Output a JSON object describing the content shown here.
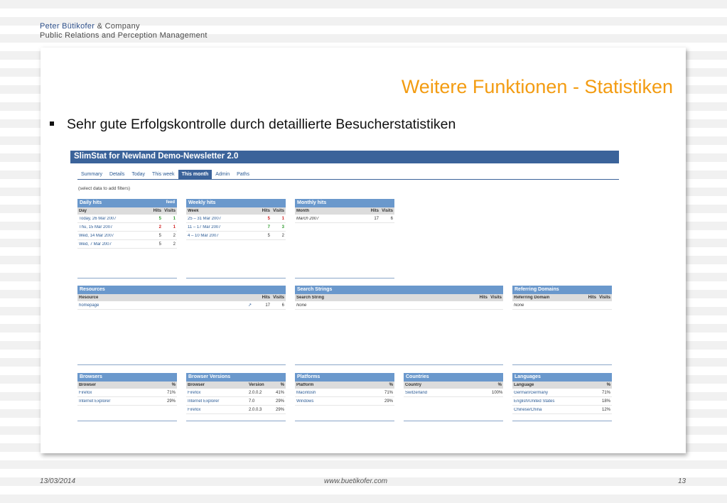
{
  "company": {
    "name": "Peter Bütikofer",
    "suffix": " & Company",
    "tagline": "Public Relations and Perception Management"
  },
  "slide": {
    "title": "Weitere Funktionen - Statistiken",
    "bullet": "Sehr gute Erfolgskontrolle durch detaillierte Besucherstatistiken"
  },
  "app": {
    "title": "SlimStat for Newland Demo-Newsletter 2.0",
    "tabs": [
      "Summary",
      "Details",
      "Today",
      "This week",
      "This month",
      "Admin",
      "Paths"
    ],
    "active_tab": "This month",
    "hint": "(select data to add filters)",
    "daily": {
      "title": "Daily hits",
      "feed": "feed",
      "cols": [
        "Day",
        "Hits",
        "Visits"
      ],
      "rows": [
        {
          "label": "Today, 26 Mar 2007",
          "hits": "5",
          "visits": "1"
        },
        {
          "label": "Thu, 15 Mar 2007",
          "hits": "2",
          "visits": "1"
        },
        {
          "label": "Wed, 14 Mar 2007",
          "hits": "5",
          "visits": "2"
        },
        {
          "label": "Wed, 7 Mar 2007",
          "hits": "5",
          "visits": "2"
        }
      ]
    },
    "weekly": {
      "title": "Weekly hits",
      "cols": [
        "Week",
        "Hits",
        "Visits"
      ],
      "rows": [
        {
          "label": "25 – 31 Mar 2007",
          "hits": "5",
          "visits": "1"
        },
        {
          "label": "11 – 17 Mar 2007",
          "hits": "7",
          "visits": "3"
        },
        {
          "label": "4 – 10 Mar 2007",
          "hits": "5",
          "visits": "2"
        }
      ]
    },
    "monthly": {
      "title": "Monthly hits",
      "cols": [
        "Month",
        "Hits",
        "Visits"
      ],
      "rows": [
        {
          "label": "March 2007",
          "hits": "17",
          "visits": "6"
        }
      ]
    },
    "resources": {
      "title": "Resources",
      "cols": [
        "Resource",
        "Hits",
        "Visits"
      ],
      "rows": [
        {
          "label": "homepage",
          "hits": "17",
          "visits": "6"
        }
      ]
    },
    "search": {
      "title": "Search Strings",
      "cols": [
        "Search String",
        "Hits",
        "Visits"
      ],
      "rows": [
        {
          "label": "None"
        }
      ]
    },
    "referring": {
      "title": "Referring Domains",
      "cols": [
        "Referring Domain",
        "Hits",
        "Visits"
      ],
      "rows": [
        {
          "label": "None"
        }
      ]
    },
    "browsers": {
      "title": "Browsers",
      "cols": [
        "Browser",
        "%"
      ],
      "rows": [
        {
          "label": "Firefox",
          "pct": "71%"
        },
        {
          "label": "Internet Explorer",
          "pct": "29%"
        }
      ]
    },
    "browser_versions": {
      "title": "Browser Versions",
      "cols": [
        "Browser",
        "Version",
        "%"
      ],
      "rows": [
        {
          "label": "Firefox",
          "version": "2.0.0.2",
          "pct": "41%"
        },
        {
          "label": "Internet Explorer",
          "version": "7.0",
          "pct": "29%"
        },
        {
          "label": "Firefox",
          "version": "2.0.0.3",
          "pct": "29%"
        }
      ]
    },
    "platforms": {
      "title": "Platforms",
      "cols": [
        "Platform",
        "%"
      ],
      "rows": [
        {
          "label": "Macintosh",
          "pct": "71%"
        },
        {
          "label": "Windows",
          "pct": "29%"
        }
      ]
    },
    "countries": {
      "title": "Countries",
      "cols": [
        "Country",
        "%"
      ],
      "rows": [
        {
          "label": "Switzerland",
          "pct": "100%"
        }
      ]
    },
    "languages": {
      "title": "Languages",
      "cols": [
        "Language",
        "%"
      ],
      "rows": [
        {
          "label": "German/Germany",
          "pct": "71%"
        },
        {
          "label": "English/United States",
          "pct": "18%"
        },
        {
          "label": "Chinese/China",
          "pct": "12%"
        }
      ]
    }
  },
  "footer": {
    "date": "13/03/2014",
    "url": "www.buetikofer.com",
    "page": "13"
  },
  "colors": {
    "accent": "#f39c12",
    "header": "#3b639a",
    "panel": "#6a98cc"
  }
}
